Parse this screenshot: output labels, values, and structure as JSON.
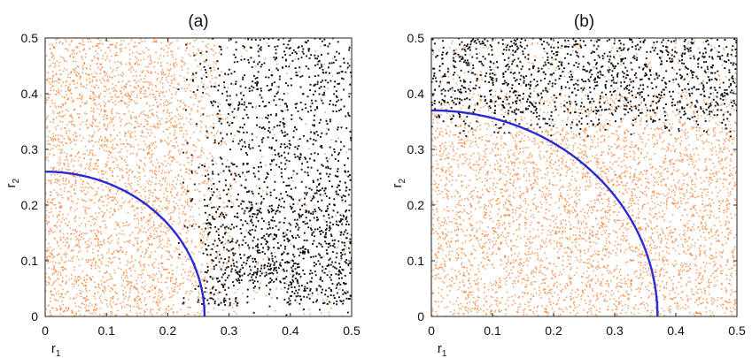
{
  "chart_data": [
    {
      "type": "scatter",
      "title": "(a)",
      "xlabel": "r",
      "xlabel_sub": "1",
      "ylabel": "r",
      "ylabel_sub": "2",
      "xlim": [
        0,
        0.5
      ],
      "ylim": [
        0,
        0.5
      ],
      "xticks": [
        "0",
        "0.1",
        "0.2",
        "0.3",
        "0.4",
        "0.5"
      ],
      "yticks": [
        "0",
        "0.1",
        "0.2",
        "0.3",
        "0.4",
        "0.5"
      ],
      "grid": false,
      "series": [
        {
          "color": "#f57a28",
          "region": "orange points concentrated at r1 below about 0.2 to 0.26, thinning to the right"
        },
        {
          "color": "#111111",
          "region": "black points for r1 above about 0.22, plus a dense band at r1 0.26 to 0.5 and r2 0.02 to 0.2"
        }
      ],
      "boundary_curve": {
        "type": "quarter-circle",
        "radius": 0.26,
        "color": "#2b2bd6"
      }
    },
    {
      "type": "scatter",
      "title": "(b)",
      "xlabel": "r",
      "xlabel_sub": "1",
      "ylabel": "r",
      "ylabel_sub": "2",
      "xlim": [
        0,
        0.5
      ],
      "ylim": [
        0,
        0.5
      ],
      "xticks": [
        "0",
        "0.1",
        "0.2",
        "0.3",
        "0.4",
        "0.5"
      ],
      "yticks": [
        "0",
        "0.1",
        "0.2",
        "0.3",
        "0.4",
        "0.5"
      ],
      "grid": false,
      "series": [
        {
          "color": "#f57a28",
          "region": "orange points densest around r1 0.25, r2 0.2, covering r2 below about 0.36"
        },
        {
          "color": "#111111",
          "region": "black points in the band r2 above about 0.33 to 0.5"
        }
      ],
      "boundary_curve": {
        "type": "quarter-circle",
        "radius": 0.37,
        "color": "#2b2bd6"
      }
    }
  ]
}
